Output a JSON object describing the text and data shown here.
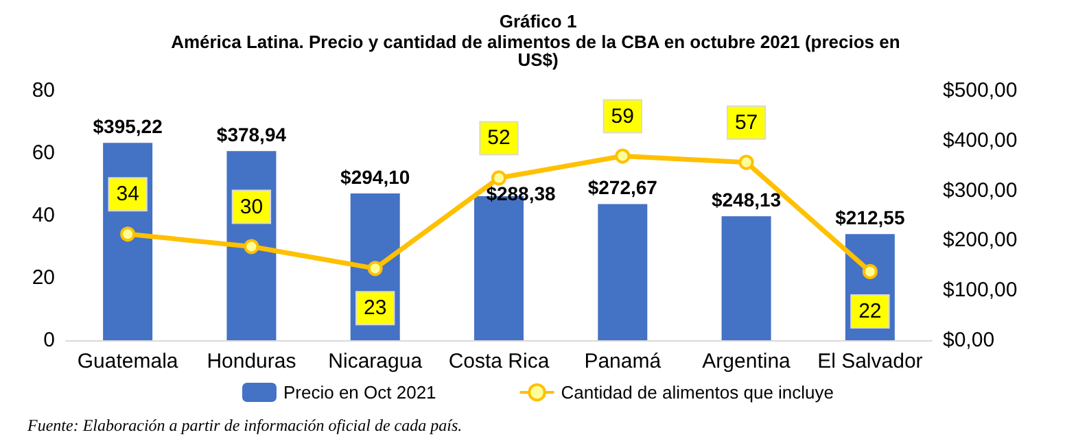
{
  "chart_data": {
    "type": "bar",
    "title": "Gráfico 1",
    "subtitle": "América Latina. Precio y cantidad de alimentos de la CBA en octubre 2021 (precios en US$)",
    "categories": [
      "Guatemala",
      "Honduras",
      "Nicaragua",
      "Costa Rica",
      "Panamá",
      "Argentina",
      "El Salvador"
    ],
    "series": [
      {
        "name": "Precio en Oct 2021",
        "axis": "y2",
        "color": "#4472c4",
        "values": [
          395.22,
          378.94,
          294.1,
          288.38,
          272.67,
          248.13,
          212.55
        ],
        "value_labels": [
          "$395,22",
          "$378,94",
          "$294,10",
          "$288,38",
          "$272,67",
          "$248,13",
          "$212,55"
        ]
      },
      {
        "name": "Cantidad de alimentos que incluye",
        "type": "line",
        "axis": "y",
        "color": "#ffc000",
        "marker": "circle",
        "values": [
          34,
          30,
          23,
          52,
          59,
          57,
          22
        ],
        "value_labels": [
          "34",
          "30",
          "23",
          "52",
          "59",
          "57",
          "22"
        ]
      }
    ],
    "ylim": [
      0,
      80
    ],
    "yticks": [
      0,
      20,
      40,
      60,
      80
    ],
    "y2lim": [
      0,
      500
    ],
    "y2ticks": [
      {
        "value": 0,
        "label": "$0,00"
      },
      {
        "value": 100,
        "label": "$100,00"
      },
      {
        "value": 200,
        "label": "$200,00"
      },
      {
        "value": 300,
        "label": "$300,00"
      },
      {
        "value": 400,
        "label": "$400,00"
      },
      {
        "value": 500,
        "label": "$500,00"
      }
    ],
    "grid": false,
    "legend": "bottom",
    "annotations": [
      "Fuente: Elaboración a partir de información oficial de cada país."
    ]
  }
}
